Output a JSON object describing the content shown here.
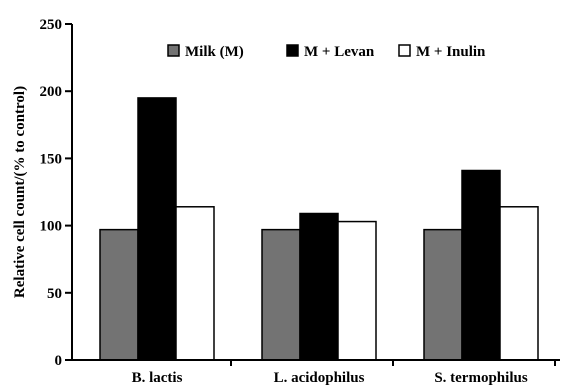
{
  "chart_data": {
    "type": "bar",
    "title": "",
    "xlabel": "",
    "ylabel": "Relative cell count/(% to control)",
    "ylim": [
      0,
      250
    ],
    "yticks": [
      0,
      50,
      100,
      150,
      200,
      250
    ],
    "grid": false,
    "legend_position": "top",
    "categories": [
      "B. lactis",
      "L. acidophilus",
      "S. termophilus"
    ],
    "series": [
      {
        "name": "Milk (M)",
        "color": "#737373",
        "values": [
          97,
          97,
          97
        ]
      },
      {
        "name": "M + Levan",
        "color": "#000000",
        "values": [
          195,
          109,
          141
        ]
      },
      {
        "name": "M + Inulin",
        "color": "#ffffff",
        "values": [
          114,
          103,
          114
        ]
      }
    ]
  }
}
